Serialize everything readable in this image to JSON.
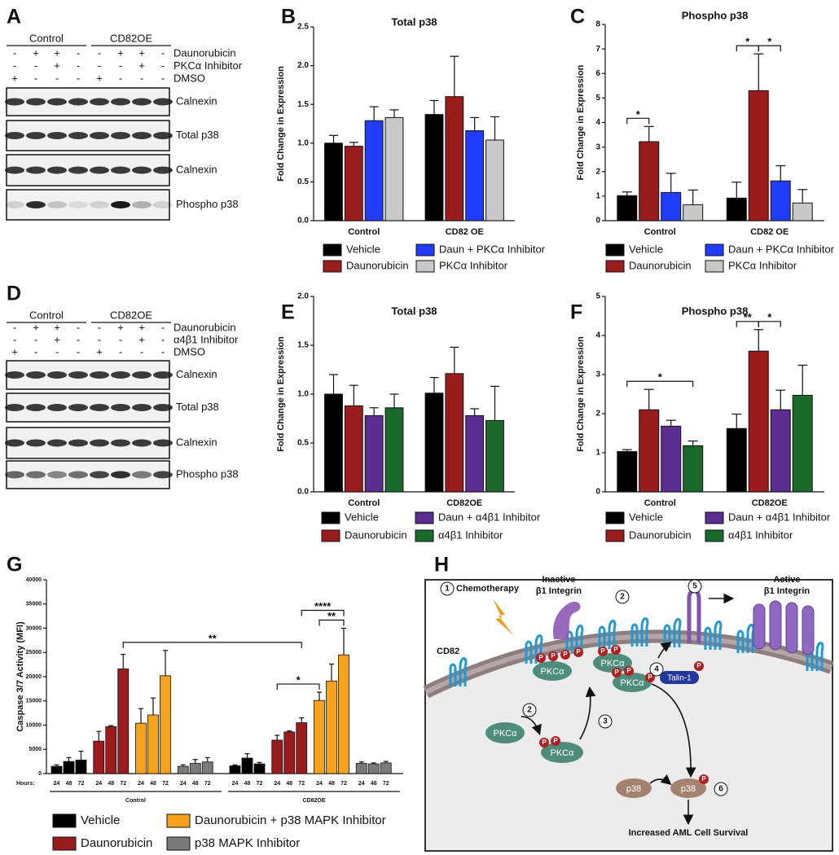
{
  "chart_data": [
    {
      "panel": "B",
      "type": "bar",
      "title": "Total p38",
      "ylabel": "Fold Change in Expression",
      "categories": [
        "Control",
        "CD82 OE"
      ],
      "series": [
        {
          "name": "Vehicle",
          "color": "#000000",
          "values": [
            1.0,
            1.37
          ],
          "errors": [
            0.1,
            0.18
          ]
        },
        {
          "name": "Daunorubicin",
          "color": "#9b1c1c",
          "values": [
            0.96,
            1.6
          ],
          "errors": [
            0.05,
            0.52
          ]
        },
        {
          "name": "Daun + PKCα Inhibitor",
          "color": "#1f3cff",
          "values": [
            1.29,
            1.16
          ],
          "errors": [
            0.18,
            0.17
          ]
        },
        {
          "name": "PKCα Inhibitor",
          "color": "#c8c8c8",
          "values": [
            1.33,
            1.04
          ],
          "errors": [
            0.1,
            0.3
          ]
        }
      ],
      "ylim": [
        0,
        2.5
      ],
      "yticks": [
        {
          "value": 0,
          "label": "0.0"
        },
        0.5,
        {
          "value": 1,
          "label": "1.0"
        },
        1.5,
        {
          "value": 2,
          "label": "2.0"
        },
        2.5
      ],
      "annotations": []
    },
    {
      "panel": "C",
      "type": "bar",
      "title": "Phospho p38",
      "ylabel": "Fold Change in Expression",
      "categories": [
        "Control",
        "CD82 OE"
      ],
      "series": [
        {
          "name": "Vehicle",
          "color": "#000000",
          "values": [
            1.02,
            0.92
          ],
          "errors": [
            0.15,
            0.65
          ]
        },
        {
          "name": "Daunorubicin",
          "color": "#9b1c1c",
          "values": [
            3.22,
            5.3
          ],
          "errors": [
            0.62,
            1.5
          ]
        },
        {
          "name": "Daun + PKCα Inhibitor",
          "color": "#1f3cff",
          "values": [
            1.15,
            1.62
          ],
          "errors": [
            0.78,
            0.62
          ]
        },
        {
          "name": "PKCα Inhibitor",
          "color": "#c8c8c8",
          "values": [
            0.65,
            0.72
          ],
          "errors": [
            0.6,
            0.55
          ]
        }
      ],
      "ylim": [
        0,
        8
      ],
      "yticks": [
        0,
        1,
        2,
        3,
        4,
        5,
        6,
        7,
        8
      ],
      "annotations": [
        {
          "text": "*",
          "category": 0,
          "from": 0,
          "to": 1
        },
        {
          "text": "*",
          "category": 1,
          "from": 0,
          "to": 1
        },
        {
          "text": "*",
          "category": 1,
          "from": 1,
          "to": 2
        }
      ]
    },
    {
      "panel": "E",
      "type": "bar",
      "title": "Total p38",
      "ylabel": "Fold Change in Expression",
      "categories": [
        "Control",
        "CD82OE"
      ],
      "series": [
        {
          "name": "Vehicle",
          "color": "#000000",
          "values": [
            1.0,
            1.01
          ],
          "errors": [
            0.2,
            0.16
          ]
        },
        {
          "name": "Daunorubicin",
          "color": "#9b1c1c",
          "values": [
            0.88,
            1.21
          ],
          "errors": [
            0.21,
            0.27
          ]
        },
        {
          "name": "Daun + α4β1 Inhibitor",
          "color": "#5b2c91",
          "values": [
            0.78,
            0.78
          ],
          "errors": [
            0.08,
            0.07
          ]
        },
        {
          "name": "α4β1 Inhibitor",
          "color": "#1a6b2a",
          "values": [
            0.86,
            0.73
          ],
          "errors": [
            0.14,
            0.35
          ]
        }
      ],
      "ylim": [
        0,
        2
      ],
      "yticks": [
        {
          "value": 0,
          "label": "0.0"
        },
        0.5,
        {
          "value": 1,
          "label": "1.0"
        },
        1.5,
        {
          "value": 2,
          "label": "2.0"
        }
      ],
      "annotations": []
    },
    {
      "panel": "F",
      "type": "bar",
      "title": "Phospho p38",
      "ylabel": "Fold Change in Expression",
      "categories": [
        "Control",
        "CD82OE"
      ],
      "series": [
        {
          "name": "Vehicle",
          "color": "#000000",
          "values": [
            1.03,
            1.62
          ],
          "errors": [
            0.05,
            0.37
          ]
        },
        {
          "name": "Daunorubicin",
          "color": "#9b1c1c",
          "values": [
            2.1,
            3.6
          ],
          "errors": [
            0.52,
            0.55
          ]
        },
        {
          "name": "Daun + α4β1 Inhibitor",
          "color": "#5b2c91",
          "values": [
            1.68,
            2.1
          ],
          "errors": [
            0.15,
            0.5
          ]
        },
        {
          "name": "α4β1 Inhibitor",
          "color": "#1a6b2a",
          "values": [
            1.18,
            2.47
          ],
          "errors": [
            0.12,
            0.77
          ]
        }
      ],
      "ylim": [
        0,
        5
      ],
      "yticks": [
        0,
        1,
        2,
        3,
        4,
        5
      ],
      "annotations": [
        {
          "text": "*",
          "category": 0,
          "from": 0,
          "to": 3
        },
        {
          "text": "**",
          "category": 1,
          "from": 0,
          "to": 1
        },
        {
          "text": "*",
          "category": 1,
          "from": 1,
          "to": 2
        }
      ]
    },
    {
      "panel": "G",
      "type": "grouped_bar",
      "ylabel": "Caspase 3/7 Activity (MFI)",
      "categories": [
        "Control",
        "CD82OE"
      ],
      "subcategory_label": "Hours:",
      "subcategories": [
        "24",
        "48",
        "72"
      ],
      "series": [
        {
          "name": "Vehicle",
          "color": "#000000",
          "values": [
            [
              1500,
              2500,
              2800
            ],
            [
              1600,
              3200,
              2000
            ]
          ],
          "errors": [
            [
              300,
              800,
              1800
            ],
            [
              200,
              900,
              300
            ]
          ]
        },
        {
          "name": "Daunorubicin",
          "color": "#9b1c1c",
          "values": [
            [
              6700,
              9700,
              21600
            ],
            [
              6900,
              8600,
              10500
            ]
          ],
          "errors": [
            [
              2000,
              200,
              3000
            ],
            [
              1000,
              200,
              1000
            ]
          ]
        },
        {
          "name": "Daunorubicin + p38 MAPK Inhibitor",
          "color": "#f7a21b",
          "values": [
            [
              10400,
              12100,
              20200
            ],
            [
              15100,
              19100,
              24500
            ]
          ],
          "errors": [
            [
              3000,
              3500,
              5200
            ],
            [
              1700,
              3500,
              5500
            ]
          ]
        },
        {
          "name": "p38 MAPK Inhibitor",
          "color": "#7a7a7a",
          "values": [
            [
              1500,
              2100,
              2400
            ],
            [
              2100,
              2000,
              2200
            ]
          ],
          "errors": [
            [
              300,
              800,
              900
            ],
            [
              300,
              200,
              300
            ]
          ]
        }
      ],
      "ylim": [
        0,
        40000
      ],
      "yticks": [
        0,
        5000,
        10000,
        15000,
        20000,
        25000,
        30000,
        35000,
        40000
      ],
      "annotations": [
        {
          "text": "*",
          "from": [
            1,
            1,
            0
          ],
          "to": [
            1,
            2,
            0
          ]
        },
        {
          "text": "**",
          "from": [
            1,
            2,
            0
          ],
          "to": [
            1,
            2,
            2
          ]
        },
        {
          "text": "****",
          "from": [
            1,
            1,
            2
          ],
          "to": [
            1,
            2,
            2
          ]
        },
        {
          "text": "**",
          "from": [
            0,
            1,
            2
          ],
          "to": [
            1,
            1,
            2
          ]
        }
      ]
    }
  ],
  "blots": [
    {
      "panel": "A",
      "groups": [
        "Control",
        "CD82OE"
      ],
      "treatments": [
        {
          "name": "Daunorubicin",
          "signs": [
            "-",
            "+",
            "+",
            "-",
            "-",
            "+",
            "+",
            "-"
          ]
        },
        {
          "name": "PKCα Inhibitor",
          "signs": [
            "-",
            "-",
            "+",
            "-",
            "-",
            "-",
            "+",
            "-"
          ]
        },
        {
          "name": "DMSO",
          "signs": [
            "+",
            "-",
            "-",
            "-",
            "+",
            "-",
            "-",
            "-"
          ]
        }
      ],
      "bands": [
        "Calnexin",
        "Total p38",
        "Calnexin",
        "Phospho p38"
      ]
    },
    {
      "panel": "D",
      "groups": [
        "Control",
        "CD82OE"
      ],
      "treatments": [
        {
          "name": "Daunorubicin",
          "signs": [
            "-",
            "+",
            "+",
            "-",
            "-",
            "+",
            "+",
            "-"
          ]
        },
        {
          "name": "α4β1 Inhibitor",
          "signs": [
            "-",
            "-",
            "+",
            "-",
            "-",
            "-",
            "+",
            "-"
          ]
        },
        {
          "name": "DMSO",
          "signs": [
            "+",
            "-",
            "-",
            "-",
            "+",
            "-",
            "-",
            "-"
          ]
        }
      ],
      "bands": [
        "Calnexin",
        "Total p38",
        "Calnexin",
        "Phospho p38"
      ]
    }
  ],
  "diagram": {
    "panel": "H",
    "chemotherapy": "Chemotherapy",
    "inactive": [
      "Inactive",
      "β1 Integrin"
    ],
    "active": [
      "Active",
      "β1 Integrin"
    ],
    "cd82": "CD82",
    "kinase": "PKCα",
    "phospho": "P",
    "talin": "Talin-1",
    "mapk": "p38",
    "outcome": "Increased AML Cell Survival",
    "steps": [
      "1",
      "2",
      "3",
      "4",
      "5",
      "6"
    ]
  }
}
